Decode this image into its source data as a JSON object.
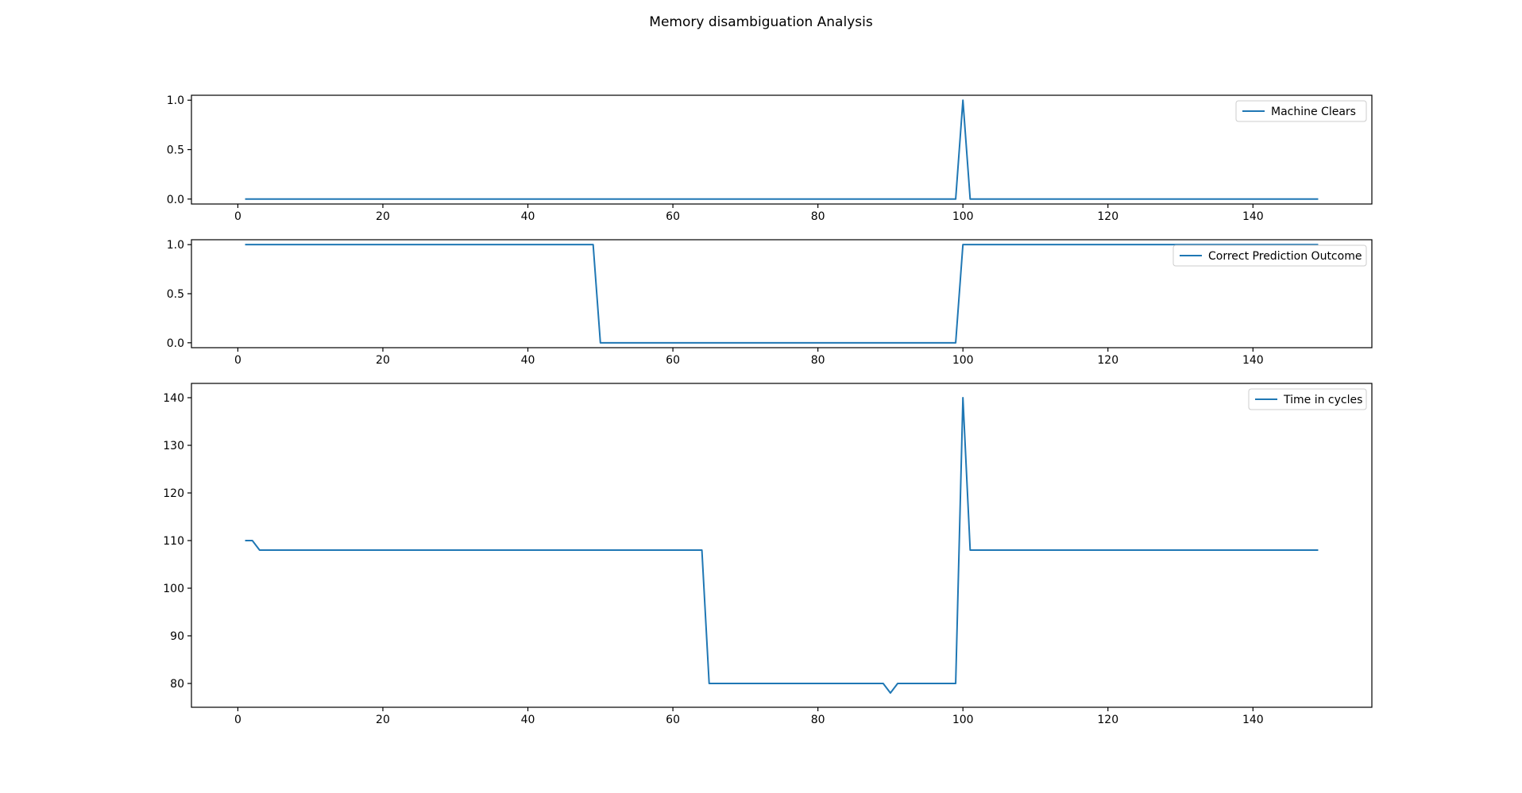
{
  "title": "Memory disambiguation Analysis",
  "chart_data": [
    {
      "type": "line",
      "title": "",
      "xlabel": "",
      "ylabel": "",
      "xlim": [
        -6.4,
        156.4
      ],
      "ylim": [
        -0.05,
        1.05
      ],
      "xticks": [
        0,
        20,
        40,
        60,
        80,
        100,
        120,
        140
      ],
      "yticks": [
        0.0,
        0.5,
        1.0
      ],
      "ytick_labels": [
        "0.0",
        "0.5",
        "1.0"
      ],
      "grid": false,
      "legend_position": "upper right",
      "series": [
        {
          "name": "Machine Clears",
          "color": "#1f77b4",
          "points": [
            [
              1,
              0
            ],
            [
              99,
              0
            ],
            [
              100,
              1
            ],
            [
              101,
              0
            ],
            [
              149,
              0
            ]
          ]
        }
      ]
    },
    {
      "type": "line",
      "title": "",
      "xlabel": "",
      "ylabel": "",
      "xlim": [
        -6.4,
        156.4
      ],
      "ylim": [
        -0.05,
        1.05
      ],
      "xticks": [
        0,
        20,
        40,
        60,
        80,
        100,
        120,
        140
      ],
      "yticks": [
        0.0,
        0.5,
        1.0
      ],
      "ytick_labels": [
        "0.0",
        "0.5",
        "1.0"
      ],
      "grid": false,
      "legend_position": "upper right",
      "series": [
        {
          "name": "Correct Prediction Outcome",
          "color": "#1f77b4",
          "points": [
            [
              1,
              1
            ],
            [
              49,
              1
            ],
            [
              50,
              0
            ],
            [
              99,
              0
            ],
            [
              100,
              1
            ],
            [
              149,
              1
            ]
          ]
        }
      ]
    },
    {
      "type": "line",
      "title": "",
      "xlabel": "",
      "ylabel": "",
      "xlim": [
        -6.4,
        156.4
      ],
      "ylim": [
        75,
        143
      ],
      "xticks": [
        0,
        20,
        40,
        60,
        80,
        100,
        120,
        140
      ],
      "yticks": [
        80,
        90,
        100,
        110,
        120,
        130,
        140
      ],
      "ytick_labels": [
        "80",
        "90",
        "100",
        "110",
        "120",
        "130",
        "140"
      ],
      "grid": false,
      "legend_position": "upper right",
      "series": [
        {
          "name": "Time in cycles",
          "color": "#1f77b4",
          "points": [
            [
              1,
              110
            ],
            [
              2,
              110
            ],
            [
              3,
              108
            ],
            [
              64,
              108
            ],
            [
              65,
              80
            ],
            [
              89,
              80
            ],
            [
              90,
              78
            ],
            [
              91,
              80
            ],
            [
              99,
              80
            ],
            [
              100,
              140
            ],
            [
              101,
              108
            ],
            [
              149,
              108
            ]
          ]
        }
      ]
    }
  ]
}
